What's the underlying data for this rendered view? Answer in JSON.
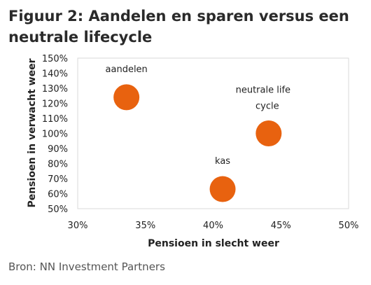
{
  "figure": {
    "title": "Figuur 2: Aandelen en sparen versus een neutrale lifecycle",
    "source": "Bron: NN Investment Partners"
  },
  "chart_data": {
    "type": "scatter",
    "title": "",
    "xlabel": "Pensioen in slecht weer",
    "ylabel": "Pensioen in verwacht weer",
    "xlim": [
      0.3,
      0.5
    ],
    "ylim": [
      0.5,
      1.5
    ],
    "xticks": [
      "30%",
      "35%",
      "40%",
      "45%",
      "50%"
    ],
    "yticks": [
      "50%",
      "60%",
      "70%",
      "80%",
      "90%",
      "100%",
      "110%",
      "120%",
      "130%",
      "140%",
      "150%"
    ],
    "grid": {
      "horizontal": false,
      "vertical": false,
      "plot_border": true
    },
    "legend": "none",
    "marker_color": "#E8620F",
    "points": [
      {
        "label": "aandelen",
        "x": 0.336,
        "y": 1.24
      },
      {
        "label": "neutrale life cycle",
        "x": 0.441,
        "y": 1.0
      },
      {
        "label": "kas",
        "x": 0.407,
        "y": 0.63
      }
    ]
  }
}
